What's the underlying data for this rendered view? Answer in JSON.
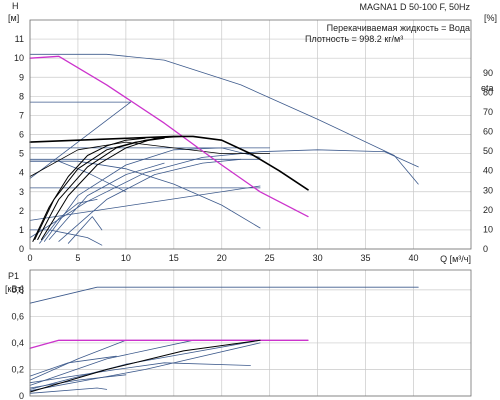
{
  "colors": {
    "background": "#ffffff",
    "grid": "#c9c9c9",
    "frame": "#707070",
    "family_curve": "#3d5a8c",
    "selected_curve": "#000000",
    "magenta_curve": "#cc33cc",
    "text": "#222222"
  },
  "chart_data": [
    {
      "type": "line",
      "title": "MAGNA1 D 50-100 F, 50Hz",
      "annotations": [
        "Перекачиваемая жидкость = Вода",
        "Плотность = 998.2 кг/м³"
      ],
      "y_label_top": "H",
      "y_unit": "[м]",
      "y2_label": "eta",
      "y2_unit": "[%]",
      "x_label": "Q",
      "x_unit": "[м³/ч]",
      "x_label_full": "Q [м³/ч]",
      "xlim": [
        0,
        46
      ],
      "ylim": [
        0,
        12
      ],
      "y2lim": [
        0,
        117
      ],
      "x_ticks": [
        "0",
        "5",
        "10",
        "15",
        "20",
        "25",
        "30",
        "35",
        "40"
      ],
      "y_ticks": [
        "0",
        "1",
        "2",
        "3",
        "4",
        "5",
        "6",
        "7",
        "8",
        "9",
        "10",
        "11"
      ],
      "y2_ticks": [
        "0",
        "10",
        "20",
        "30",
        "40",
        "50",
        "60",
        "70",
        "80",
        "90"
      ],
      "grid": true,
      "series": [
        {
          "role": "family",
          "points": [
            [
              0,
              10.2
            ],
            [
              8,
              10.2
            ],
            [
              14,
              9.9
            ],
            [
              22,
              8.6
            ],
            [
              30,
              6.8
            ],
            [
              38,
              4.9
            ],
            [
              40.5,
              3.4
            ]
          ]
        },
        {
          "role": "magenta",
          "points": [
            [
              0,
              10.0
            ],
            [
              3,
              10.1
            ],
            [
              8,
              8.6
            ],
            [
              14,
              6.6
            ],
            [
              20,
              4.4
            ],
            [
              24,
              3.0
            ],
            [
              29,
              1.7
            ]
          ]
        },
        {
          "role": "selected",
          "points": [
            [
              0.3,
              0.4
            ],
            [
              2,
              2.2
            ],
            [
              4,
              3.8
            ],
            [
              6,
              4.9
            ],
            [
              8,
              5.4
            ],
            [
              10,
              5.7
            ],
            [
              12,
              5.8
            ]
          ]
        },
        {
          "role": "selected",
          "points": [
            [
              0.5,
              0.5
            ],
            [
              2.5,
              2.6
            ],
            [
              5,
              4.2
            ],
            [
              8,
              5.2
            ],
            [
              11,
              5.6
            ],
            [
              14,
              5.8
            ]
          ]
        },
        {
          "role": "selected",
          "points": [
            [
              0.8,
              0.5
            ],
            [
              3,
              2.6
            ],
            [
              6,
              4.3
            ],
            [
              9,
              5.3
            ],
            [
              12,
              5.7
            ],
            [
              15,
              5.9
            ]
          ]
        },
        {
          "role": "selected",
          "points": [
            [
              1.2,
              0.5
            ],
            [
              4,
              2.8
            ],
            [
              7,
              4.4
            ],
            [
              10,
              5.3
            ],
            [
              13,
              5.8
            ],
            [
              16,
              5.9
            ]
          ]
        },
        {
          "role": "selected",
          "points": [
            [
              0,
              5.6
            ],
            [
              5,
              5.7
            ],
            [
              10,
              5.8
            ],
            [
              15,
              5.9
            ],
            [
              17,
              5.9
            ],
            [
              20,
              5.7
            ],
            [
              23,
              5.0
            ],
            [
              26,
              4.1
            ],
            [
              29,
              3.1
            ]
          ]
        },
        {
          "role": "efficiency",
          "points": [
            [
              0,
              3.8
            ],
            [
              5,
              5.2
            ],
            [
              10,
              5.6
            ],
            [
              15,
              5.3
            ],
            [
              20,
              5.0
            ],
            [
              25,
              5.0
            ]
          ]
        },
        {
          "role": "family",
          "points": [
            [
              0,
              4.6
            ],
            [
              5,
              4.6
            ],
            [
              10,
              4.2
            ],
            [
              15,
              3.4
            ],
            [
              20,
              2.3
            ],
            [
              24,
              1.1
            ]
          ]
        },
        {
          "role": "family",
          "points": [
            [
              0,
              4.6
            ],
            [
              3,
              4.6
            ],
            [
              6,
              4.0
            ],
            [
              10,
              3.0
            ]
          ]
        },
        {
          "role": "family",
          "points": [
            [
              0,
              1.0
            ],
            [
              2,
              1.0
            ],
            [
              4,
              0.8
            ],
            [
              6,
              0.6
            ],
            [
              7.5,
              0.2
            ]
          ]
        },
        {
          "role": "family",
          "points": [
            [
              0,
              7.7
            ],
            [
              10.5,
              7.7
            ]
          ]
        },
        {
          "role": "family",
          "points": [
            [
              0,
              3.7
            ],
            [
              10.5,
              7.7
            ]
          ]
        },
        {
          "role": "family",
          "points": [
            [
              0,
              1.5
            ],
            [
              24,
              3.3
            ]
          ]
        },
        {
          "role": "family",
          "points": [
            [
              0,
              3.2
            ],
            [
              24,
              3.2
            ]
          ]
        },
        {
          "role": "family",
          "points": [
            [
              0,
              4.7
            ],
            [
              24,
              4.7
            ]
          ]
        },
        {
          "role": "family",
          "points": [
            [
              0,
              5.3
            ],
            [
              25,
              5.3
            ]
          ]
        },
        {
          "role": "family",
          "points": [
            [
              0,
              0.6
            ],
            [
              6,
              2.5
            ],
            [
              12,
              4.0
            ],
            [
              18,
              4.8
            ],
            [
              24,
              5.1
            ],
            [
              30,
              5.2
            ],
            [
              37,
              5.1
            ],
            [
              40.5,
              4.3
            ]
          ]
        },
        {
          "role": "family",
          "points": [
            [
              1.5,
              0.4
            ],
            [
              5,
              2.8
            ],
            [
              10,
              4.4
            ],
            [
              15,
              5.2
            ],
            [
              20,
              5.3
            ],
            [
              24,
              4.8
            ]
          ]
        },
        {
          "role": "family",
          "points": [
            [
              3,
              0.4
            ],
            [
              8,
              2.6
            ],
            [
              13,
              3.9
            ],
            [
              18,
              4.5
            ],
            [
              22,
              4.7
            ]
          ]
        },
        {
          "role": "family",
          "points": [
            [
              4,
              0.3
            ],
            [
              6.5,
              1.7
            ],
            [
              7.5,
              1.0
            ]
          ]
        },
        {
          "role": "family",
          "points": [
            [
              1,
              0.3
            ],
            [
              3,
              1.6
            ],
            [
              5,
              2.4
            ],
            [
              7,
              2.6
            ]
          ]
        },
        {
          "role": "family",
          "points": [
            [
              2,
              0.5
            ],
            [
              6,
              2.8
            ],
            [
              10,
              3.9
            ],
            [
              14,
              4.5
            ]
          ]
        }
      ]
    },
    {
      "type": "line",
      "y_label_top": "P1",
      "y_unit": "[кВт]",
      "xlim": [
        0,
        46
      ],
      "ylim": [
        0,
        0.95
      ],
      "y_ticks": [
        "0",
        "0,2",
        "0,4",
        "0,6",
        "0,8"
      ],
      "grid": true,
      "series": [
        {
          "role": "family",
          "points": [
            [
              0,
              0.7
            ],
            [
              7,
              0.82
            ],
            [
              40.5,
              0.82
            ]
          ]
        },
        {
          "role": "magenta",
          "points": [
            [
              0,
              0.36
            ],
            [
              3,
              0.42
            ],
            [
              29,
              0.42
            ]
          ]
        },
        {
          "role": "family",
          "points": [
            [
              0,
              0.12
            ],
            [
              5,
              0.28
            ],
            [
              10,
              0.42
            ],
            [
              29,
              0.42
            ]
          ]
        },
        {
          "role": "family",
          "points": [
            [
              0,
              0.08
            ],
            [
              8,
              0.28
            ],
            [
              17,
              0.42
            ],
            [
              24,
              0.42
            ]
          ]
        },
        {
          "role": "family",
          "points": [
            [
              0,
              0.05
            ],
            [
              10,
              0.24
            ],
            [
              24,
              0.42
            ]
          ]
        },
        {
          "role": "family",
          "points": [
            [
              0,
              0.04
            ],
            [
              12,
              0.2
            ],
            [
              24,
              0.4
            ]
          ]
        },
        {
          "role": "family",
          "points": [
            [
              0,
              0.1
            ],
            [
              9,
              0.2
            ],
            [
              14,
              0.25
            ],
            [
              23,
              0.23
            ]
          ]
        },
        {
          "role": "family",
          "points": [
            [
              0,
              0.02
            ],
            [
              7,
              0.06
            ],
            [
              8,
              0.05
            ]
          ]
        },
        {
          "role": "family",
          "points": [
            [
              0,
              0.15
            ],
            [
              4,
              0.25
            ],
            [
              9,
              0.3
            ]
          ]
        },
        {
          "role": "family",
          "points": [
            [
              0,
              0.06
            ],
            [
              5,
              0.12
            ],
            [
              10,
              0.16
            ]
          ]
        },
        {
          "role": "selected",
          "points": [
            [
              0,
              0.03
            ],
            [
              8,
              0.2
            ],
            [
              16,
              0.34
            ],
            [
              24,
              0.42
            ]
          ]
        }
      ]
    }
  ]
}
